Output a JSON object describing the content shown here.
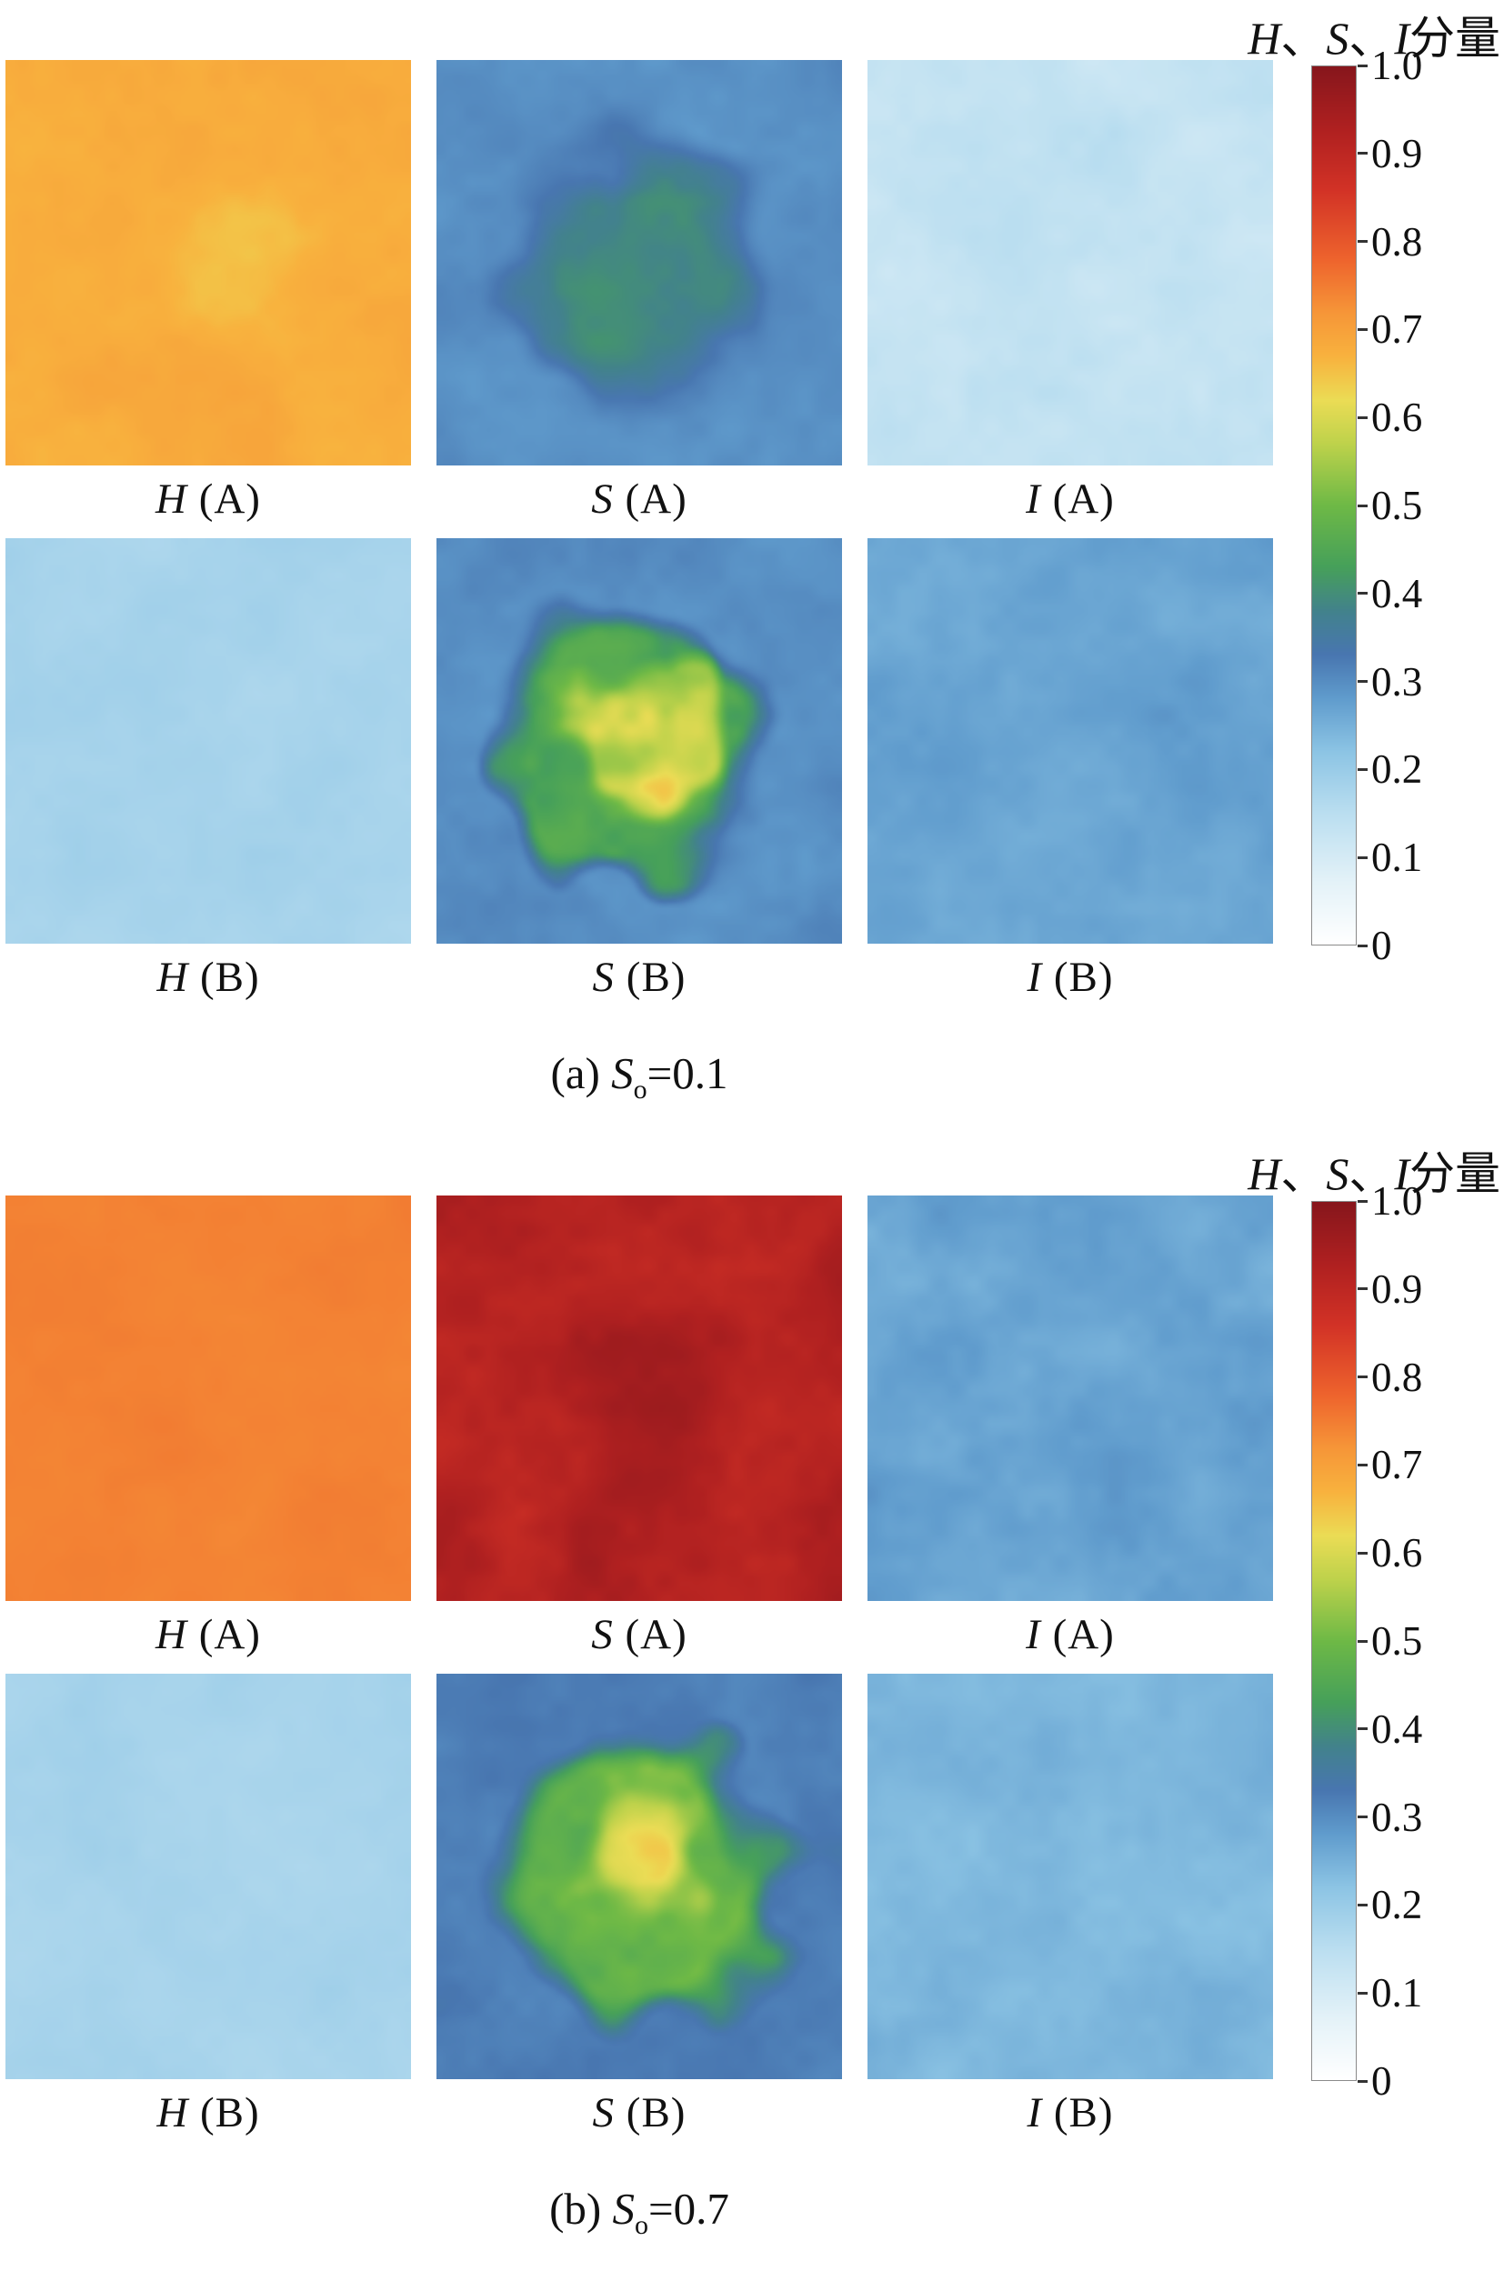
{
  "figure": {
    "background": "#ffffff"
  },
  "colormap_stops": [
    [
      0.0,
      [
        255,
        255,
        255
      ]
    ],
    [
      0.07,
      [
        228,
        242,
        248
      ]
    ],
    [
      0.15,
      [
        186,
        222,
        240
      ]
    ],
    [
      0.22,
      [
        140,
        196,
        228
      ]
    ],
    [
      0.28,
      [
        96,
        156,
        205
      ]
    ],
    [
      0.33,
      [
        72,
        118,
        176
      ]
    ],
    [
      0.38,
      [
        66,
        130,
        140
      ]
    ],
    [
      0.43,
      [
        70,
        160,
        90
      ]
    ],
    [
      0.5,
      [
        110,
        185,
        70
      ]
    ],
    [
      0.57,
      [
        190,
        210,
        75
      ]
    ],
    [
      0.62,
      [
        235,
        220,
        85
      ]
    ],
    [
      0.67,
      [
        248,
        178,
        62
      ]
    ],
    [
      0.72,
      [
        246,
        150,
        56
      ]
    ],
    [
      0.78,
      [
        238,
        100,
        45
      ]
    ],
    [
      0.86,
      [
        210,
        50,
        38
      ]
    ],
    [
      0.93,
      [
        175,
        32,
        32
      ]
    ],
    [
      1.0,
      [
        135,
        22,
        28
      ]
    ]
  ],
  "colorbar": {
    "ticks": [
      "1.0",
      "0.9",
      "0.8",
      "0.7",
      "0.6",
      "0.5",
      "0.4",
      "0.3",
      "0.2",
      "0.1",
      "0"
    ],
    "min": 0,
    "max": 1
  },
  "chart_data": [
    {
      "panel": "a",
      "type": "heatmap",
      "title": "H、S、I分量",
      "title_parts": [
        {
          "t": "H",
          "i": 1
        },
        {
          "t": "、",
          "i": 0
        },
        {
          "t": "S",
          "i": 1
        },
        {
          "t": "、",
          "i": 0
        },
        {
          "t": "I",
          "i": 1
        },
        {
          "t": "分量",
          "i": 0
        }
      ],
      "caption": "(a) So=0.1",
      "caption_parts": {
        "prefix": "(a) ",
        "var": "S",
        "sub": "o",
        "rest": "=0.1"
      },
      "value_range": [
        0,
        1
      ],
      "tiles": [
        {
          "name": "H (A)",
          "label_var": "H",
          "label_suffix": " (A)",
          "approx": "near-uniform ~0.68 (orange), slightly lighter ~0.65 centre",
          "field": {
            "base": 0.68,
            "noise": 0.018,
            "seed": 11,
            "blob": {
              "r": 0.62,
              "soft": 0.55,
              "edge_noise": 0.3,
              "mid": 0.655,
              "mid_noise": 0.02
            }
          }
        },
        {
          "name": "S (A)",
          "label_var": "S",
          "label_suffix": " (A)",
          "approx": "~0.30 blue rim rising to ~0.40 greenish centre",
          "field": {
            "base": 0.3,
            "noise": 0.018,
            "seed": 22,
            "blob": {
              "r": 0.78,
              "soft": 0.55,
              "edge_noise": 0.35,
              "mid": 0.395,
              "mid_noise": 0.03
            }
          }
        },
        {
          "name": "I (A)",
          "label_var": "I",
          "label_suffix": " (A)",
          "approx": "near-uniform ~0.13 (very light blue)",
          "field": {
            "base": 0.13,
            "noise": 0.025,
            "seed": 33
          }
        },
        {
          "name": "H (B)",
          "label_var": "H",
          "label_suffix": " (B)",
          "approx": "near-uniform ~0.18 (light blue)",
          "field": {
            "base": 0.18,
            "noise": 0.012,
            "seed": 44
          }
        },
        {
          "name": "S (B)",
          "label_var": "S",
          "label_suffix": " (B)",
          "approx": "~0.30 blue rim, ~0.46 green blob, patchy ~0.58-0.62 yellow core",
          "field": {
            "base": 0.3,
            "noise": 0.02,
            "seed": 55,
            "blob": {
              "r": 0.8,
              "soft": 0.28,
              "edge_noise": 0.38,
              "mid": 0.46,
              "mid_noise": 0.05,
              "core": {
                "r": 0.48,
                "soft": 0.3,
                "edge_noise": 0.45,
                "value": 0.58,
                "noise": 0.09
              }
            }
          }
        },
        {
          "name": "I (B)",
          "label_var": "I",
          "label_suffix": " (B)",
          "approx": "near-uniform ~0.27 (medium blue)",
          "field": {
            "base": 0.27,
            "noise": 0.02,
            "seed": 66
          }
        }
      ]
    },
    {
      "panel": "b",
      "type": "heatmap",
      "title": "H、S、I分量",
      "title_parts": [
        {
          "t": "H",
          "i": 1
        },
        {
          "t": "、",
          "i": 0
        },
        {
          "t": "S",
          "i": 1
        },
        {
          "t": "、",
          "i": 0
        },
        {
          "t": "I",
          "i": 1
        },
        {
          "t": "分量",
          "i": 0
        }
      ],
      "caption": "(b) So=0.7",
      "caption_parts": {
        "prefix": "(b) ",
        "var": "S",
        "sub": "o",
        "rest": "=0.7"
      },
      "value_range": [
        0,
        1
      ],
      "tiles": [
        {
          "name": "H (A)",
          "label_var": "H",
          "label_suffix": " (A)",
          "approx": "uniform ~0.74 (strong orange)",
          "field": {
            "base": 0.745,
            "noise": 0.008,
            "seed": 77
          }
        },
        {
          "name": "S (A)",
          "label_var": "S",
          "label_suffix": " (A)",
          "approx": "~0.92 dark red, darker ~0.95 centre, bright ~0.85 speckles",
          "field": {
            "base": 0.92,
            "noise": 0.04,
            "seed": 88,
            "blob": {
              "r": 0.7,
              "soft": 0.6,
              "edge_noise": 0.3,
              "mid": 0.95,
              "mid_noise": 0.03
            }
          }
        },
        {
          "name": "I (A)",
          "label_var": "I",
          "label_suffix": " (A)",
          "approx": "near-uniform ~0.27 (medium blue, speckled)",
          "field": {
            "base": 0.27,
            "noise": 0.025,
            "seed": 99
          }
        },
        {
          "name": "H (B)",
          "label_var": "H",
          "label_suffix": " (B)",
          "approx": "near-uniform ~0.18 (light blue)",
          "field": {
            "base": 0.18,
            "noise": 0.012,
            "seed": 101
          }
        },
        {
          "name": "S (B)",
          "label_var": "S",
          "label_suffix": " (B)",
          "approx": "~0.32 blue rim, ~0.49 green blob, ~0.63 orange core",
          "field": {
            "base": 0.32,
            "noise": 0.02,
            "seed": 112,
            "blob": {
              "r": 0.82,
              "soft": 0.3,
              "edge_noise": 0.3,
              "mid": 0.49,
              "mid_noise": 0.05,
              "core": {
                "r": 0.42,
                "soft": 0.4,
                "edge_noise": 0.3,
                "value": 0.63,
                "noise": 0.07
              }
            }
          }
        },
        {
          "name": "I (B)",
          "label_var": "I",
          "label_suffix": " (B)",
          "approx": "near-uniform ~0.24 (medium blue)",
          "field": {
            "base": 0.24,
            "noise": 0.02,
            "seed": 123
          }
        }
      ]
    }
  ]
}
